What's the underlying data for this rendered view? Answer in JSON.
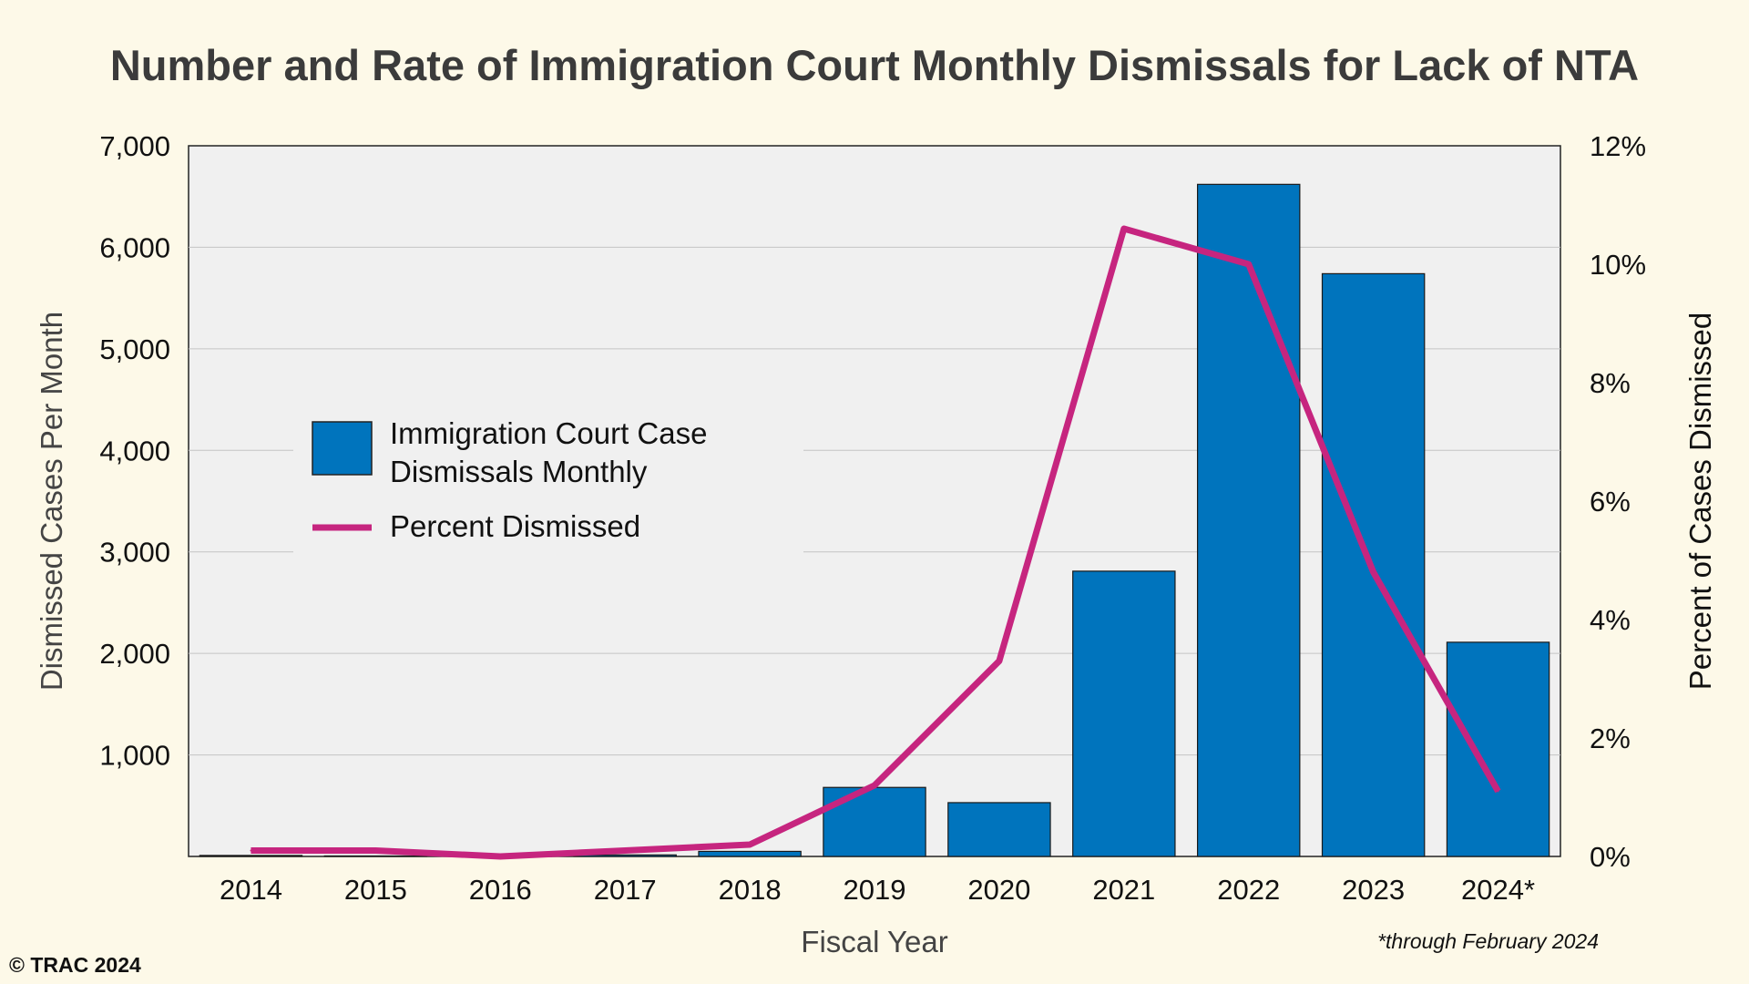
{
  "credit": "© TRAC 2024",
  "footnote": "*through February 2024",
  "colors": {
    "background": "#fdf9e8",
    "plot_area": "#f0f0f0",
    "bar": "#0074bd",
    "line": "#c6257f"
  },
  "chart_data": {
    "type": "bar",
    "title": "Number and Rate of Immigration Court Monthly Dismissals for Lack of NTA",
    "xlabel": "Fiscal Year",
    "ylabel": "Dismissed Cases Per Month",
    "y2label": "Percent of Cases Dismissed",
    "categories": [
      "2014",
      "2015",
      "2016",
      "2017",
      "2018",
      "2019",
      "2020",
      "2021",
      "2022",
      "2023",
      "2024*"
    ],
    "ylim": [
      0,
      7000
    ],
    "y_ticks": [
      "1,000",
      "2,000",
      "3,000",
      "4,000",
      "5,000",
      "6,000",
      "7,000"
    ],
    "y2lim": [
      0,
      12
    ],
    "y2_ticks": [
      "0%",
      "2%",
      "4%",
      "6%",
      "8%",
      "10%",
      "12%"
    ],
    "grid": true,
    "legend_position": "left-center",
    "series": [
      {
        "name": "Immigration Court Case Dismissals Monthly",
        "name_lines": [
          "Immigration Court Case",
          "Dismissals Monthly"
        ],
        "type": "bar",
        "axis": "left",
        "values": [
          10,
          5,
          5,
          15,
          50,
          680,
          530,
          2810,
          6620,
          5740,
          2110
        ]
      },
      {
        "name": "Percent Dismissed",
        "type": "line",
        "axis": "right",
        "values": [
          0.1,
          0.1,
          0.0,
          0.1,
          0.2,
          1.2,
          3.3,
          10.6,
          10.0,
          4.8,
          1.1
        ]
      }
    ]
  }
}
